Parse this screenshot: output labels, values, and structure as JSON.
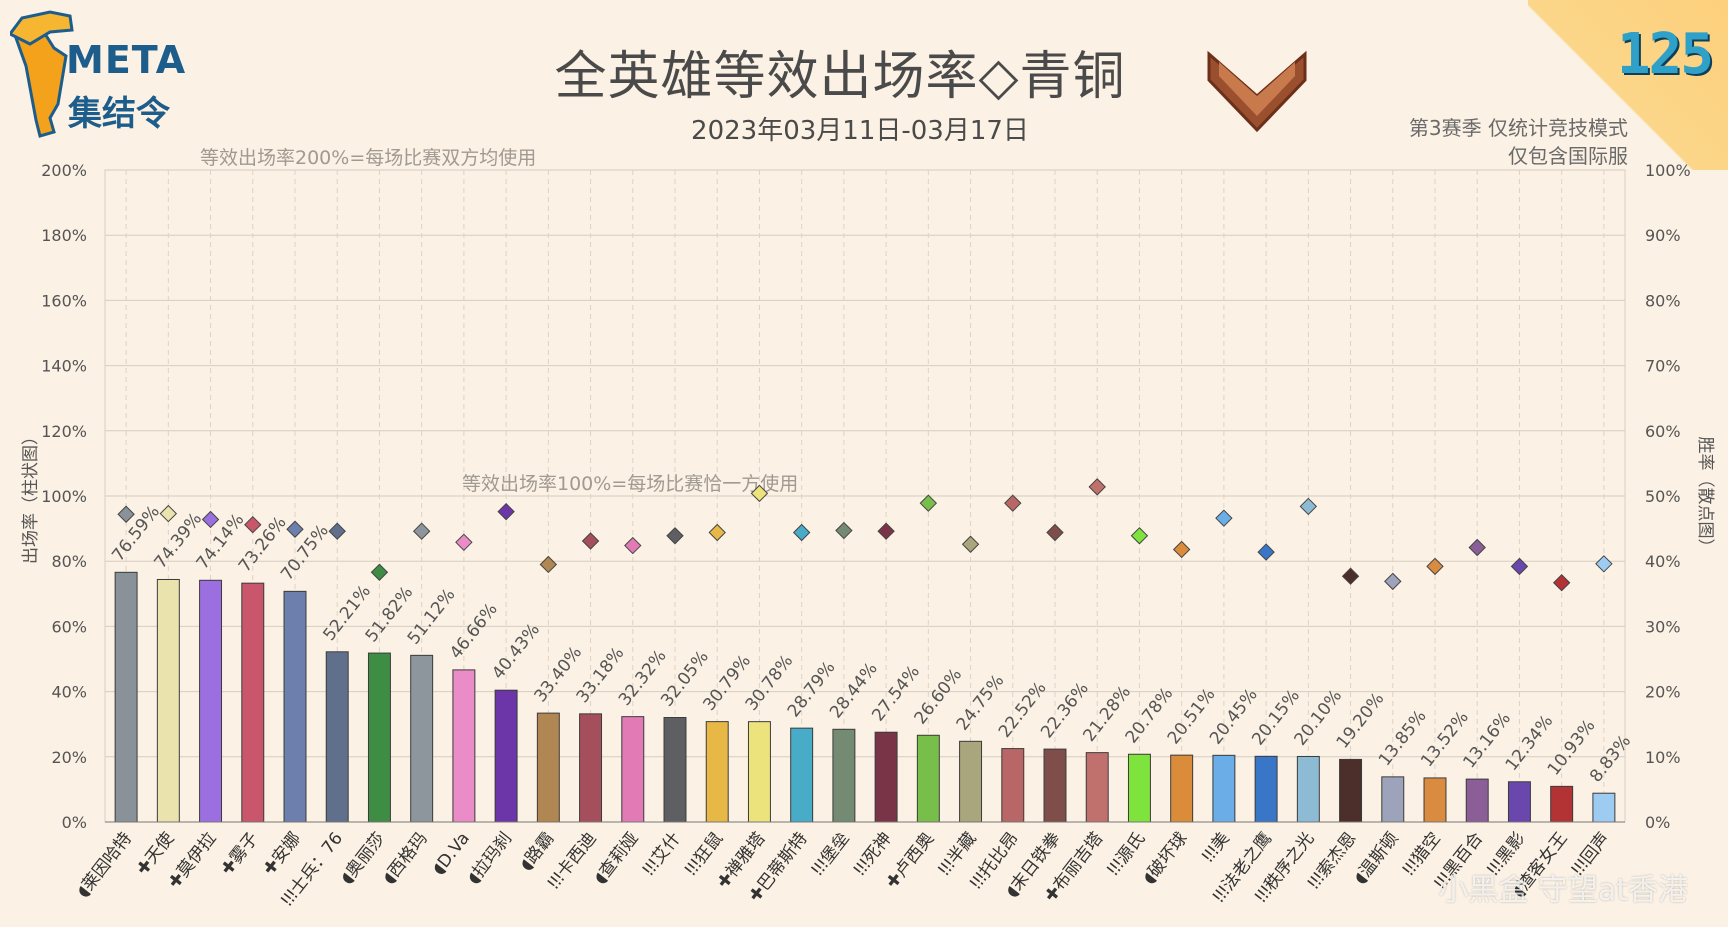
{
  "header": {
    "logo_line1": "META",
    "logo_line2": "集结令",
    "title": "全英雄等效出场率◇青铜",
    "date_range": "2023年03月11日-03月17日",
    "note_line1": "第3赛季 仅统计竞技模式",
    "note_line2": "仅包含国际服",
    "issue_number": "125",
    "watermark": "小黑盒 守望at香港"
  },
  "chart_data": {
    "type": "bar",
    "left_axis_label": "出场率（柱状图）",
    "right_axis_label": "胜率（散点图）",
    "left_ylim": [
      0,
      200
    ],
    "right_ylim": [
      0,
      100
    ],
    "left_ticks": [
      "0%",
      "20%",
      "40%",
      "60%",
      "80%",
      "100%",
      "120%",
      "140%",
      "160%",
      "180%",
      "200%"
    ],
    "right_ticks": [
      "0%",
      "10%",
      "20%",
      "30%",
      "40%",
      "50%",
      "60%",
      "70%",
      "80%",
      "90%",
      "100%"
    ],
    "annotations": [
      {
        "text": "等效出场率200%=每场比赛双方均使用",
        "y": 200
      },
      {
        "text": "等效出场率100%=每场比赛恰一方使用",
        "y": 100
      }
    ],
    "grid": true,
    "categories": [
      "◖莱因哈特",
      "✚天使",
      "✚莫伊拉",
      "✚雾子",
      "✚安娜",
      "ǃǃǃ士兵：76",
      "◖奥丽莎",
      "◖西格玛",
      "◖D.Va",
      "◖拉玛刹",
      "◖路霸",
      "ǃǃǃ卡西迪",
      "◖查莉娅",
      "ǃǃǃ艾什",
      "ǃǃǃ狂鼠",
      "✚禅雅塔",
      "✚巴蒂斯特",
      "ǃǃǃ堡垒",
      "ǃǃǃ死神",
      "✚卢西奥",
      "ǃǃǃ半藏",
      "ǃǃǃ托比昂",
      "◖末日铁拳",
      "✚布丽吉塔",
      "ǃǃǃ源氏",
      "◖破坏球",
      "ǃǃǃ美",
      "ǃǃǃ法老之鹰",
      "ǃǃǃ秩序之光",
      "ǃǃǃ索杰恩",
      "◖温斯顿",
      "ǃǃǃ猎空",
      "ǃǃǃ黑百合",
      "ǃǃǃ黑影",
      "◖渣客女王",
      "ǃǃǃ回声"
    ],
    "series": [
      {
        "name": "出场率",
        "values": [
          76.59,
          74.39,
          74.14,
          73.26,
          70.75,
          52.21,
          51.82,
          51.12,
          46.66,
          40.43,
          33.4,
          33.18,
          32.32,
          32.05,
          30.79,
          30.78,
          28.79,
          28.44,
          27.54,
          26.6,
          24.75,
          22.52,
          22.36,
          21.28,
          20.78,
          20.51,
          20.45,
          20.15,
          20.1,
          19.2,
          13.85,
          13.52,
          13.16,
          12.34,
          10.93,
          8.83
        ],
        "labels": [
          "76.59%",
          "74.39%",
          "74.14%",
          "73.26%",
          "70.75%",
          "52.21%",
          "51.82%",
          "51.12%",
          "46.66%",
          "40.43%",
          "33.40%",
          "33.18%",
          "32.32%",
          "32.05%",
          "30.79%",
          "30.78%",
          "28.79%",
          "28.44%",
          "27.54%",
          "26.60%",
          "24.75%",
          "22.52%",
          "22.36%",
          "21.28%",
          "20.78%",
          "20.51%",
          "20.45%",
          "20.15%",
          "20.10%",
          "19.20%",
          "13.85%",
          "13.52%",
          "13.16%",
          "12.34%",
          "10.93%",
          "8.83%"
        ]
      },
      {
        "name": "胜率",
        "values": [
          47.2,
          47.3,
          46.4,
          45.6,
          44.9,
          44.6,
          38.3,
          44.6,
          42.9,
          47.6,
          39.5,
          43.1,
          42.4,
          43.9,
          44.4,
          50.4,
          44.4,
          44.7,
          44.6,
          48.9,
          42.6,
          48.9,
          44.4,
          51.4,
          43.9,
          41.8,
          46.6,
          41.4,
          48.4,
          37.7,
          36.9,
          39.2,
          42.1,
          39.2,
          36.7,
          39.6
        ]
      }
    ],
    "colors": [
      "#8a9299",
      "#ebe3ad",
      "#9c6fe0",
      "#c9566a",
      "#6d7fad",
      "#5f6f8c",
      "#3f8c44",
      "#8d969d",
      "#e98cc7",
      "#6c36a8",
      "#b08652",
      "#a54f5c",
      "#e27ab6",
      "#5e5f62",
      "#e8b847",
      "#ece37c",
      "#48abc7",
      "#758a73",
      "#7a3447",
      "#78be4a",
      "#a9a57c",
      "#b96666",
      "#7f4e4b",
      "#c0716e",
      "#7ee33c",
      "#da8c3a",
      "#6aade7",
      "#3a76c7",
      "#8dbbd4",
      "#4c2e2b",
      "#9da3bb",
      "#d98c3f",
      "#8b5e98",
      "#6a47ad",
      "#b33335",
      "#9ecbf2"
    ]
  }
}
